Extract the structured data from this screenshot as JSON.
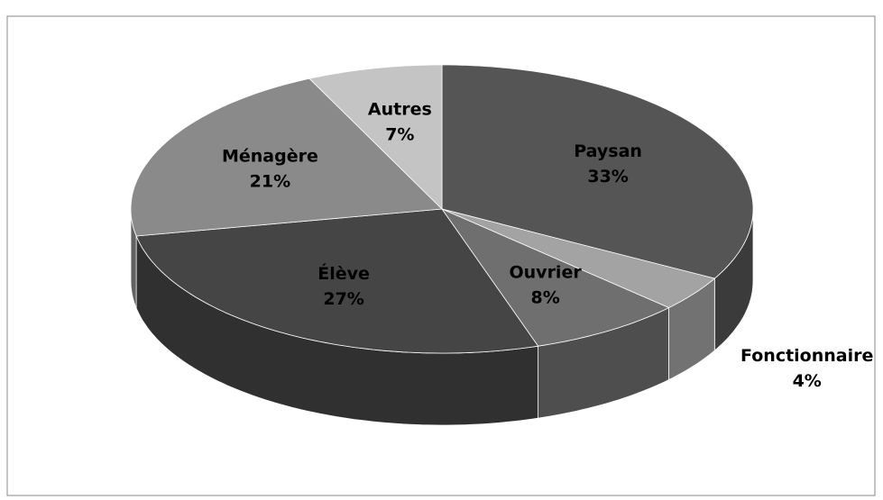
{
  "chart_data": {
    "type": "pie3d",
    "categories": [
      "Paysan",
      "Fonctionnaire",
      "Ouvrier",
      "Élève",
      "Ménagère",
      "Autres"
    ],
    "values": [
      33,
      4,
      8,
      27,
      21,
      7
    ],
    "value_labels": [
      "33%",
      "4%",
      "8%",
      "27%",
      "21%",
      "7%"
    ],
    "colors": [
      "#555555",
      "#a3a3a3",
      "#6f6f6f",
      "#454545",
      "#8a8a8a",
      "#c4c4c4"
    ]
  }
}
